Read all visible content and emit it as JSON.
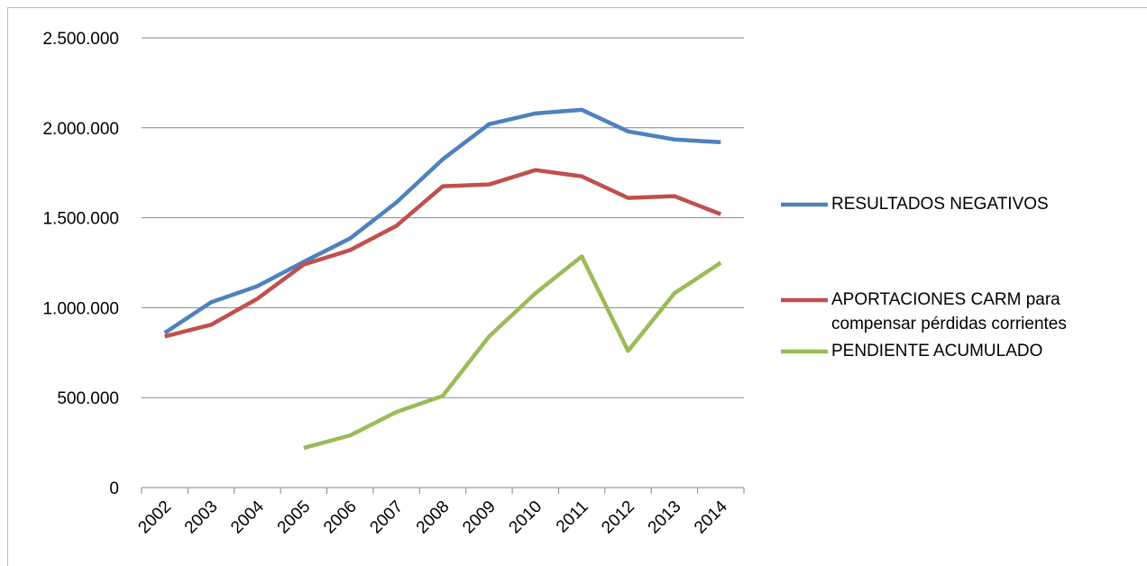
{
  "chart_data": {
    "type": "line",
    "categories": [
      "2002",
      "2003",
      "2004",
      "2005",
      "2006",
      "2007",
      "2008",
      "2009",
      "2010",
      "2011",
      "2012",
      "2013",
      "2014"
    ],
    "series": [
      {
        "name": "RESULTADOS NEGATIVOS",
        "color": "#4f81bd",
        "values": [
          860000,
          1030000,
          1120000,
          1255000,
          1385000,
          1585000,
          1825000,
          2020000,
          2080000,
          2100000,
          1980000,
          1935000,
          1920000
        ]
      },
      {
        "name": "APORTACIONES CARM para compensar pérdidas corrientes",
        "color": "#c0504d",
        "values": [
          840000,
          905000,
          1050000,
          1240000,
          1320000,
          1455000,
          1675000,
          1685000,
          1765000,
          1730000,
          1610000,
          1620000,
          1520000
        ]
      },
      {
        "name": "PENDIENTE ACUMULADO",
        "color": "#9bbb59",
        "values": [
          null,
          null,
          null,
          220000,
          290000,
          420000,
          510000,
          840000,
          1080000,
          1285000,
          760000,
          1080000,
          1250000
        ]
      }
    ],
    "ylim": [
      0,
      2500000
    ],
    "yticks": [
      0,
      {
        "value": 500000,
        "label": "500.000"
      },
      {
        "value": 1000000,
        "label": "1.000.000"
      },
      {
        "value": 1500000,
        "label": "1.500.000"
      },
      {
        "value": 2000000,
        "label": "2.000.000"
      },
      {
        "value": 2500000,
        "label": "2.500.000"
      }
    ],
    "grid": true,
    "legend": "right"
  }
}
